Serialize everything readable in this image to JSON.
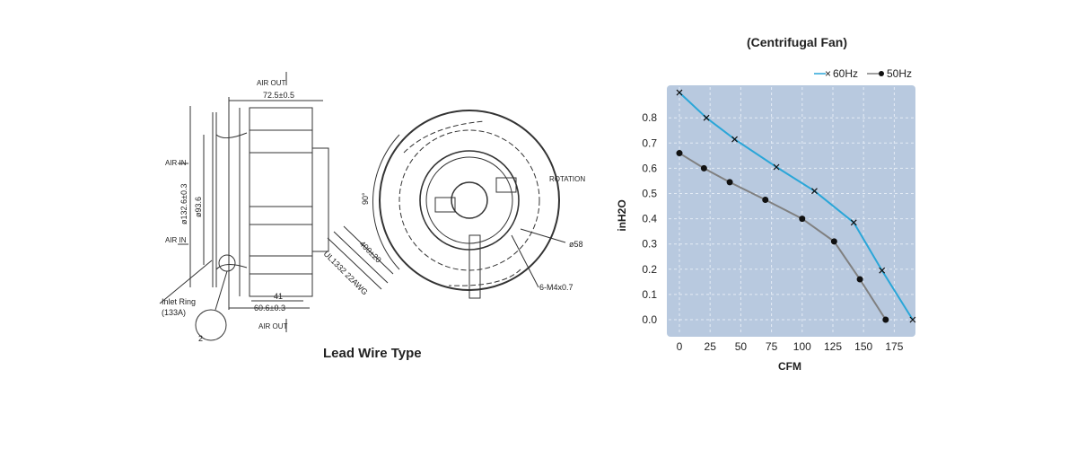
{
  "drawing": {
    "caption": "Lead Wire Type",
    "labels": {
      "air_out_top": "AIR OUT",
      "air_out_bottom": "AIR OUT",
      "air_in_1": "AIR IN",
      "air_in_2": "AIR IN",
      "width": "72.5±0.5",
      "outer_diameter": "ø132.6±0.3",
      "inner_diameter": "ø93.6",
      "depth_41": "41",
      "depth_total": "60.6±0.3",
      "inlet_ring": "Inlet Ring",
      "inlet_ring_code": "(133A)",
      "detail_2": "2",
      "wire_length": "400±20",
      "wire_spec": "UL1332 22AWG",
      "angle": "90°",
      "rotation": "ROTATION",
      "hub_diameter": "ø58",
      "screws": "6-M4x0.7"
    }
  },
  "chart_data": {
    "type": "line",
    "title": "(Centrifugal Fan)",
    "xlabel": "CFM",
    "ylabel": "inH2O",
    "xlim": [
      -7,
      193
    ],
    "ylim": [
      -0.1,
      0.93
    ],
    "xticks": [
      "0",
      "25",
      "50",
      "75",
      "100",
      "125",
      "150",
      "175"
    ],
    "yticks": [
      "0.0",
      "0.1",
      "0.2",
      "0.3",
      "0.4",
      "0.5",
      "0.6",
      "0.7",
      "0.8"
    ],
    "grid": true,
    "legend_position": "top-right",
    "background_color": "#b8c9df",
    "series": [
      {
        "name": "60Hz",
        "color": "#2aa6d8",
        "marker": "x",
        "x": [
          0,
          22,
          45,
          79,
          110,
          142,
          165,
          190
        ],
        "y": [
          0.9,
          0.8,
          0.715,
          0.605,
          0.51,
          0.385,
          0.195,
          0.0
        ]
      },
      {
        "name": "50Hz",
        "color": "#808080",
        "marker": "dot",
        "x": [
          0,
          20,
          41,
          70,
          100,
          126,
          147,
          168
        ],
        "y": [
          0.66,
          0.6,
          0.545,
          0.475,
          0.4,
          0.31,
          0.16,
          0.0
        ]
      }
    ]
  }
}
